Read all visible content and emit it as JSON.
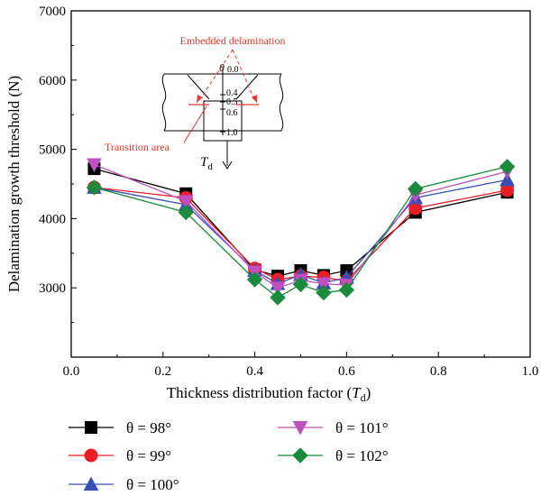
{
  "chart_data": {
    "type": "line",
    "xlabel": "Thickness distribution factor",
    "xlabel_symbol": "T",
    "xlabel_sub": "d",
    "ylabel": "Delamination growth threshold (N)",
    "xlim": [
      0.0,
      1.0
    ],
    "ylim": [
      2000,
      7000
    ],
    "xticks": [
      0.0,
      0.2,
      0.4,
      0.6,
      0.8,
      1.0
    ],
    "yticks": [
      3000,
      4000,
      5000,
      6000,
      7000
    ],
    "xtick_labels": [
      "0.0",
      "0.2",
      "0.4",
      "0.6",
      "0.8",
      "1.0"
    ],
    "ytick_labels": [
      "3000",
      "4000",
      "5000",
      "6000",
      "7000"
    ],
    "grid": false,
    "legend_position": "below plot",
    "x": [
      0.05,
      0.25,
      0.4,
      0.45,
      0.5,
      0.55,
      0.6,
      0.75,
      0.95
    ],
    "series": [
      {
        "name": "θ = 98°",
        "marker": "square",
        "color": "#000000",
        "values": [
          4720,
          4360,
          3260,
          3170,
          3250,
          3180,
          3250,
          4090,
          4380
        ]
      },
      {
        "name": "θ = 99°",
        "marker": "circle",
        "color": "#ee1c24",
        "values": [
          4450,
          4300,
          3280,
          3120,
          3170,
          3150,
          3100,
          4150,
          4410
        ]
      },
      {
        "name": "θ = 100°",
        "marker": "triangle-up",
        "color": "#3a4fb5",
        "values": [
          4450,
          4200,
          3250,
          3060,
          3190,
          3070,
          3150,
          4300,
          4560
        ]
      },
      {
        "name": "θ = 101°",
        "marker": "triangle-down",
        "color": "#c04fc0",
        "values": [
          4780,
          4250,
          3230,
          3000,
          3110,
          3060,
          3040,
          4340,
          4680
        ]
      },
      {
        "name": "θ = 102°",
        "marker": "diamond",
        "color": "#1a8a3c",
        "values": [
          4450,
          4090,
          3120,
          2860,
          3050,
          2930,
          2970,
          4430,
          4750
        ]
      }
    ]
  },
  "inset": {
    "title": "Embedded delamination",
    "transition_label": "Transition area",
    "theta_label": "θ",
    "td_label": "T",
    "td_sub": "d",
    "scale_labels": [
      "0.0",
      "0.4",
      "0.5",
      "0.6",
      "1.0"
    ],
    "accent_color": "#e8382e"
  }
}
